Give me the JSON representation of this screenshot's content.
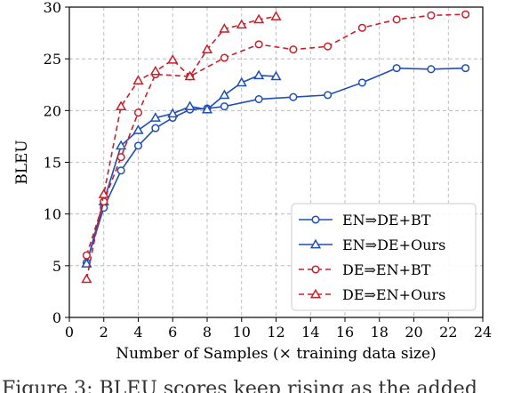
{
  "chart_data": {
    "type": "line",
    "xlabel": "Number of Samples (× training data size)",
    "ylabel": "BLEU",
    "xlim": [
      0,
      24
    ],
    "ylim": [
      0,
      30
    ],
    "xticks": [
      "0",
      "2",
      "4",
      "6",
      "8",
      "10",
      "12",
      "14",
      "16",
      "18",
      "20",
      "22",
      "24"
    ],
    "yticks": [
      "0",
      "5",
      "10",
      "15",
      "20",
      "25",
      "30"
    ],
    "grid": true,
    "legend_position": "bottom-right",
    "series": [
      {
        "name": "EN⇒DE+BT",
        "color": "#1f4fb4",
        "marker": "circle",
        "linestyle": "solid",
        "x": [
          1,
          2,
          3,
          4,
          5,
          6,
          7,
          8,
          9,
          11,
          13,
          15,
          17,
          19,
          21,
          23
        ],
        "y": [
          5.3,
          10.6,
          14.2,
          16.6,
          18.3,
          19.3,
          20.1,
          20.2,
          20.4,
          21.1,
          21.3,
          21.5,
          22.7,
          24.1,
          24.0,
          24.1
        ]
      },
      {
        "name": "EN⇒DE+Ours",
        "color": "#1f4fb4",
        "marker": "triangle",
        "linestyle": "solid",
        "x": [
          1,
          2,
          3,
          4,
          5,
          6,
          7,
          8,
          9,
          10,
          11,
          12
        ],
        "y": [
          5.2,
          11.2,
          16.6,
          18.1,
          19.3,
          19.7,
          20.4,
          20.1,
          21.5,
          22.7,
          23.4,
          23.3
        ]
      },
      {
        "name": "DE⇒EN+BT",
        "color": "#c8202a",
        "marker": "circle",
        "linestyle": "dashed",
        "x": [
          1,
          2,
          3,
          4,
          5,
          7,
          9,
          11,
          13,
          15,
          17,
          19,
          21,
          23
        ],
        "y": [
          6.0,
          11.2,
          15.5,
          19.8,
          23.5,
          23.3,
          25.1,
          26.4,
          25.9,
          26.2,
          28.0,
          28.8,
          29.2,
          29.3
        ]
      },
      {
        "name": "DE⇒EN+Ours",
        "color": "#c8202a",
        "marker": "triangle",
        "linestyle": "dashed",
        "x": [
          1,
          2,
          3,
          4,
          5,
          6,
          7,
          8,
          9,
          10,
          11,
          12
        ],
        "y": [
          3.7,
          11.9,
          20.4,
          22.9,
          23.8,
          24.9,
          23.3,
          25.9,
          27.9,
          28.3,
          28.8,
          29.1
        ]
      }
    ]
  },
  "caption_text": "Figure 3:  BLEU scores keep rising as the added"
}
